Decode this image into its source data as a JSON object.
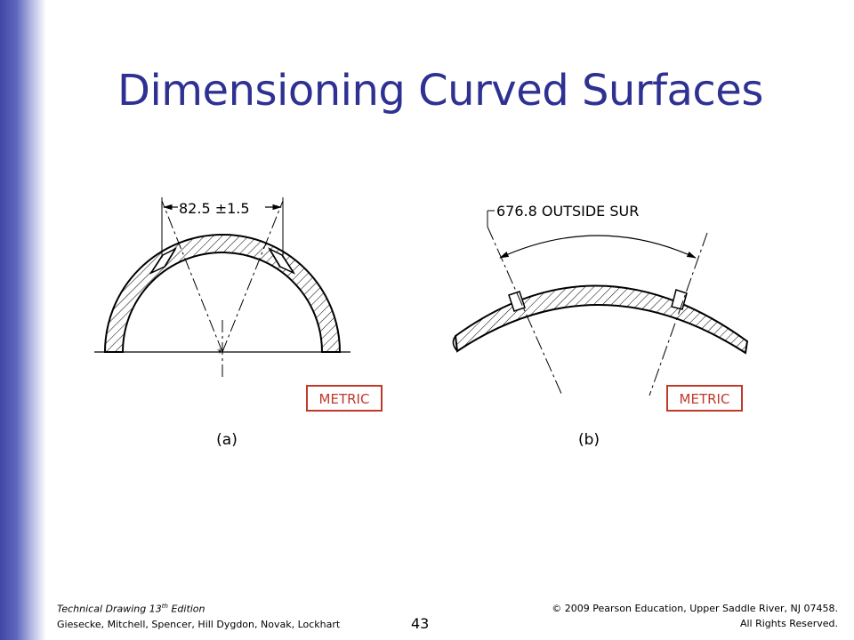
{
  "slide": {
    "title": "Dimensioning Curved Surfaces",
    "page_number": "43"
  },
  "figure_a": {
    "dimension_label": "82.5 ±1.5",
    "metric_label": "METRIC",
    "caption": "(a)"
  },
  "figure_b": {
    "dimension_label": "676.8 OUTSIDE SUR",
    "metric_label": "METRIC",
    "caption": "(b)"
  },
  "footer": {
    "book_title": "Technical Drawing 13",
    "edition_sup": "th",
    "edition_suffix": " Edition",
    "authors": "Giesecke, Mitchell, Spencer, Hill Dygdon, Novak, Lockhart",
    "copyright": "© 2009 Pearson Education, Upper Saddle River, NJ 07458.",
    "rights": "All Rights Reserved."
  },
  "colors": {
    "title": "#2e3192",
    "metric_border": "#c0392b",
    "side_bar": "#3f47a6"
  }
}
